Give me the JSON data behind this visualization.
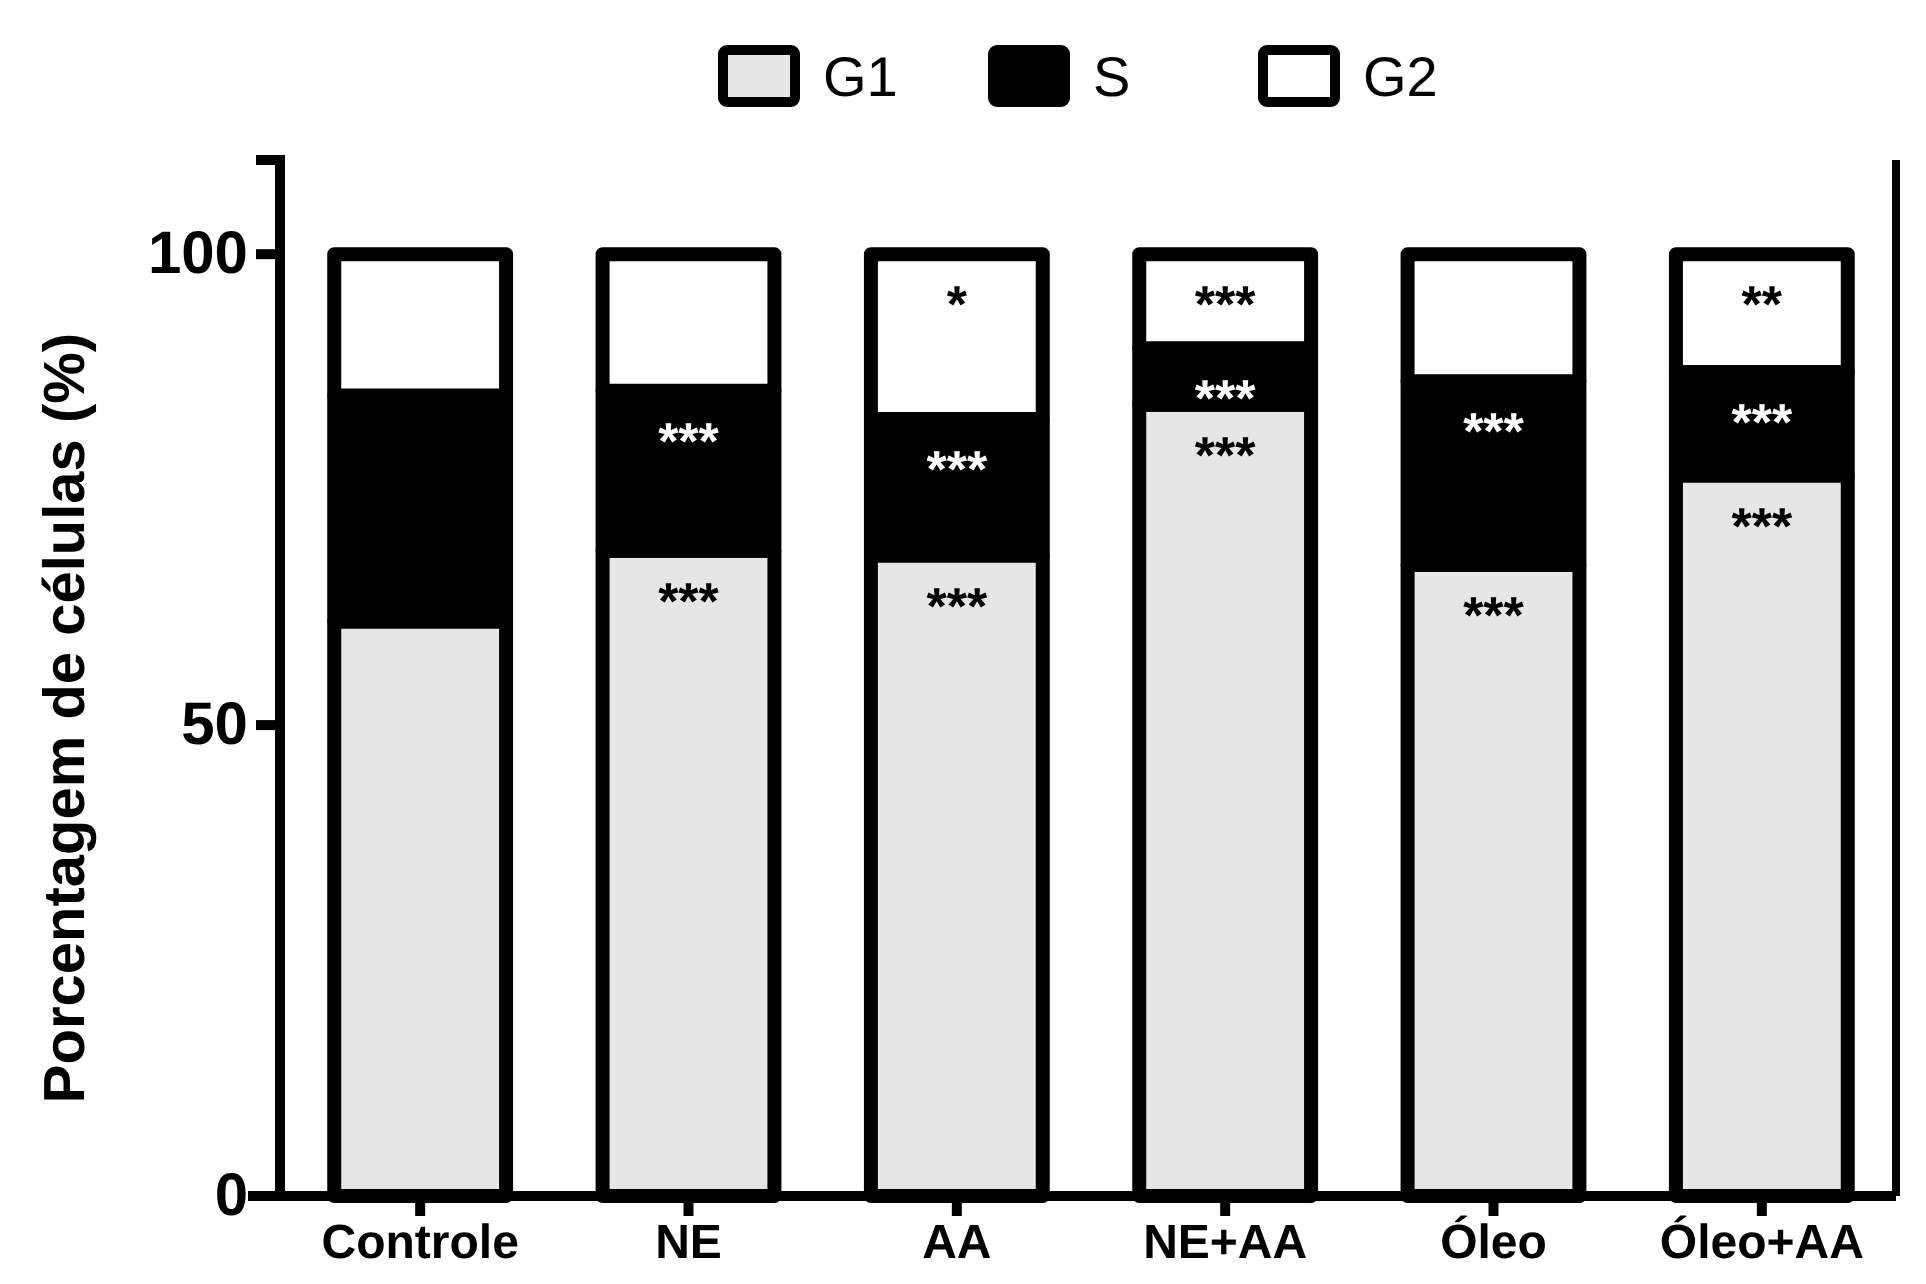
{
  "chart_data": {
    "type": "bar",
    "stacked": true,
    "ylabel": "Porcentagem de células (%)",
    "categories": [
      "Controle",
      "NE",
      "AA",
      "NE+AA",
      "Óleo",
      "Óleo+AA"
    ],
    "series": [
      {
        "name": "G1",
        "color": "#e6e6e6",
        "values": [
          61,
          68.5,
          68,
          84,
          67,
          76.5
        ]
      },
      {
        "name": "S",
        "color": "#000000",
        "values": [
          24,
          17,
          14.5,
          6,
          19.5,
          11
        ]
      },
      {
        "name": "G2",
        "color": "#ffffff",
        "values": [
          15,
          14.5,
          17.5,
          10,
          13.5,
          12.5
        ]
      }
    ],
    "ylim": [
      0,
      110
    ],
    "yticks": [
      0,
      50,
      100
    ],
    "grid": false,
    "legend": "top",
    "annotations": [
      {
        "text": "***",
        "x": "NE",
        "y": 85.5
      },
      {
        "text": "***",
        "x": "NE",
        "y": 68.5
      },
      {
        "text": "*",
        "x": "AA",
        "y": 100
      },
      {
        "text": "***",
        "x": "AA",
        "y": 82.5
      },
      {
        "text": "***",
        "x": "AA",
        "y": 68
      },
      {
        "text": "***",
        "x": "NE+AA",
        "y": 100
      },
      {
        "text": "***",
        "x": "NE+AA",
        "y": 90
      },
      {
        "text": "***",
        "x": "NE+AA",
        "y": 84
      },
      {
        "text": "***",
        "x": "Óleo",
        "y": 86.5
      },
      {
        "text": "***",
        "x": "Óleo",
        "y": 67
      },
      {
        "text": "**",
        "x": "Óleo+AA",
        "y": 100
      },
      {
        "text": "***",
        "x": "Óleo+AA",
        "y": 87.5
      },
      {
        "text": "***",
        "x": "Óleo+AA",
        "y": 76.5
      }
    ]
  }
}
